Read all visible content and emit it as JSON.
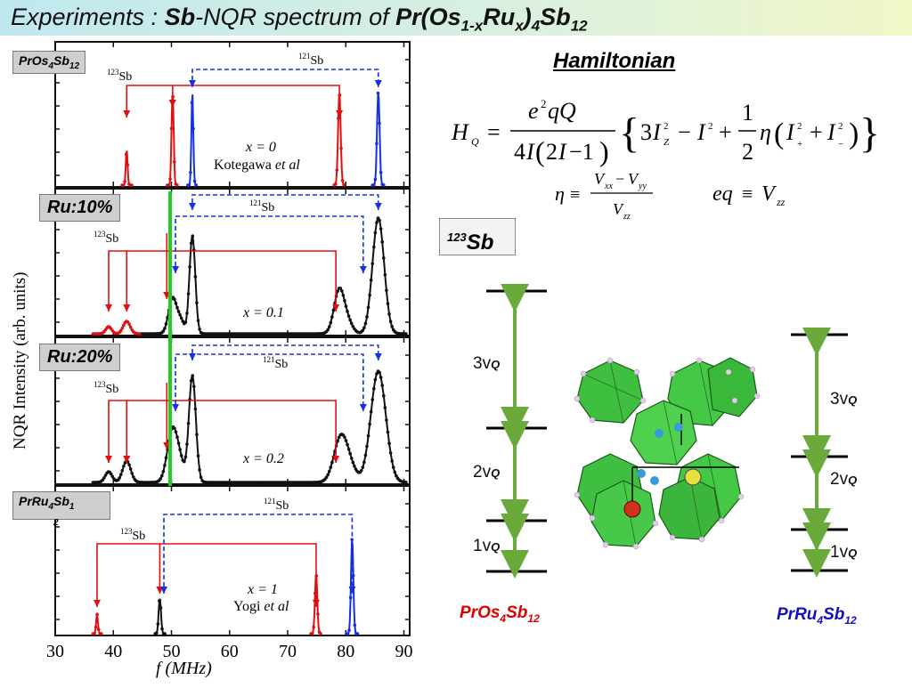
{
  "title": {
    "prefix": "Experiments : ",
    "bold1": "Sb",
    "mid": "-NQR spectrum of ",
    "formula_parts": [
      "Pr(Os",
      "1-x",
      "Ru",
      "x",
      ")",
      "4",
      "Sb",
      "12"
    ]
  },
  "plot": {
    "y_axis_label": "NQR Intensity  (arb. units)",
    "x_axis_label": "f  (MHz)",
    "x_ticks": [
      "30",
      "40",
      "50",
      "60",
      "70",
      "80",
      "90"
    ],
    "panels": [
      {
        "label_parts": [
          "PrOs",
          "4",
          "Sb",
          "12"
        ],
        "x_text": "x = 0",
        "author": "Kotegawa",
        "etal": "et al",
        "iso123": "123",
        "iso121": "121",
        "sb": "Sb"
      },
      {
        "label": "Ru:10%",
        "x_text": "x = 0.1",
        "iso123": "123",
        "iso121": "121",
        "sb": "Sb"
      },
      {
        "label": "Ru:20%",
        "x_text": "x = 0.2",
        "iso123": "123",
        "iso121": "121",
        "sb": "Sb"
      },
      {
        "label_parts": [
          "PrRu",
          "4",
          "Sb",
          "1",
          "2"
        ],
        "x_text": "x = 1",
        "author": "Yogi",
        "etal": "et al",
        "iso123": "123",
        "iso121": "121",
        "sb": "Sb"
      }
    ]
  },
  "hamiltonian": {
    "title": "Hamiltonian",
    "lhs": "H",
    "lhs_sub": "Q",
    "eta": "η",
    "def_sign": "≡",
    "vxx": "V",
    "eq_lhs": "eq",
    "eq_rhs": "V"
  },
  "sb_box": {
    "sup": "123",
    "text": "Sb"
  },
  "levels_left": [
    "3v",
    "2v",
    "1v"
  ],
  "levels_right": [
    "3v",
    "2v",
    "1v"
  ],
  "level_sub": "Q",
  "compound_left": {
    "parts": [
      "PrOs",
      "4",
      "Sb",
      "12"
    ],
    "color": "#dd0000"
  },
  "compound_right": {
    "parts": [
      "PrRu",
      "4",
      "Sb",
      "12"
    ],
    "color": "#1010c0"
  },
  "colors": {
    "red": "#e01010",
    "blue": "#1530e0",
    "black": "#111111",
    "green": "#22cc22",
    "arrow_green": "#6aaa3a"
  }
}
